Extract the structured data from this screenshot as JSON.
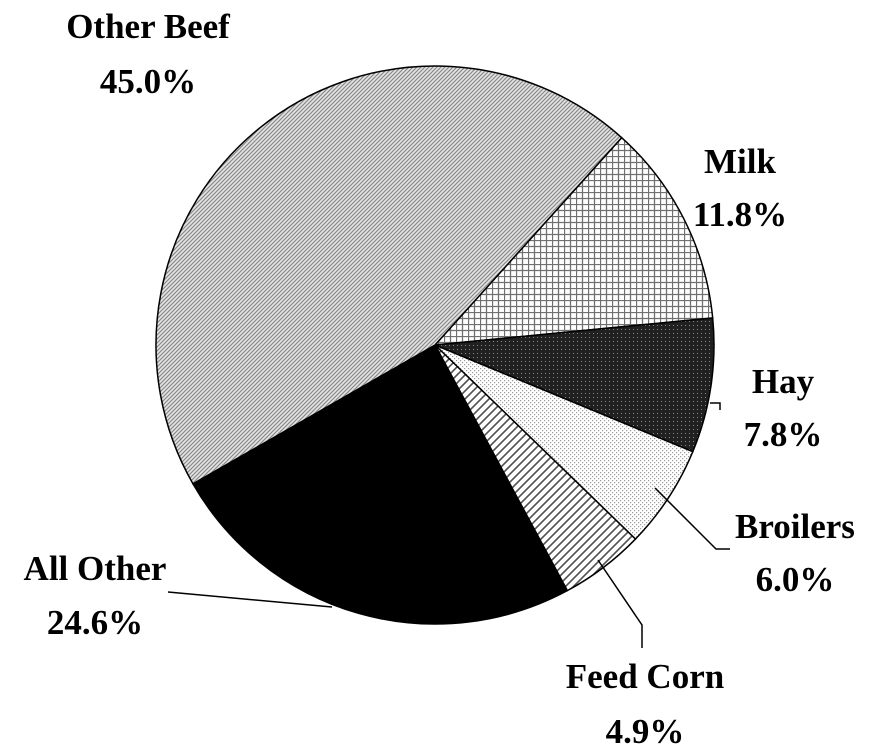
{
  "chart_data": {
    "type": "pie",
    "categories": [
      "Milk",
      "Hay",
      "Broilers",
      "Feed Corn",
      "All Other",
      "Other Beef"
    ],
    "values": [
      11.8,
      7.8,
      6.0,
      4.9,
      24.6,
      45.0
    ],
    "value_labels": [
      "11.8%",
      "7.8%",
      "6.0%",
      "4.9%",
      "24.6%",
      "45.0%"
    ],
    "colors": [
      "#707070",
      "#202020",
      "#9a9a9a",
      "#505050",
      "#000000",
      "#8a8a8a"
    ]
  }
}
